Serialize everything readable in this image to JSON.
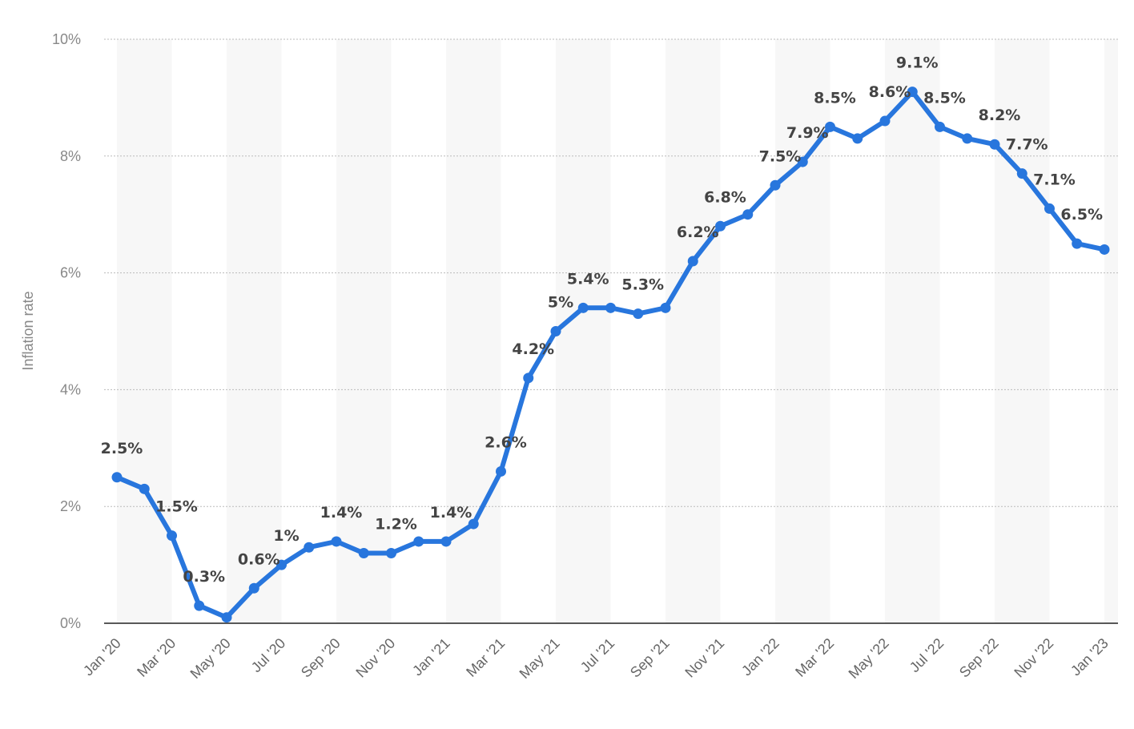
{
  "chart_data": {
    "type": "line",
    "title": "",
    "xlabel": "",
    "ylabel": "Inflation rate",
    "ylim": [
      0,
      10
    ],
    "yticks": [
      "0%",
      "2%",
      "4%",
      "6%",
      "8%",
      "10%"
    ],
    "y_tick_values": [
      0,
      2,
      4,
      6,
      8,
      10
    ],
    "grid": true,
    "line_color": "#2876dd",
    "x": [
      "Jan '20",
      "Feb '20",
      "Mar '20",
      "Apr '20",
      "May '20",
      "Jun '20",
      "Jul '20",
      "Aug '20",
      "Sep '20",
      "Oct '20",
      "Nov '20",
      "Dec '20",
      "Jan '21",
      "Feb '21",
      "Mar '21",
      "Apr '21",
      "May '21",
      "Jun '21",
      "Jul '21",
      "Aug '21",
      "Sep '21",
      "Oct '21",
      "Nov '21",
      "Dec '21",
      "Jan '22",
      "Feb '22",
      "Mar '22",
      "Apr '22",
      "May '22",
      "Jun '22",
      "Jul '22",
      "Aug '22",
      "Sep '22",
      "Oct '22",
      "Nov '22",
      "Dec '22",
      "Jan '23"
    ],
    "values": [
      2.5,
      2.3,
      1.5,
      0.3,
      0.1,
      0.6,
      1.0,
      1.3,
      1.4,
      1.2,
      1.2,
      1.4,
      1.4,
      1.7,
      2.6,
      4.2,
      5.0,
      5.4,
      5.4,
      5.3,
      5.4,
      6.2,
      6.8,
      7.0,
      7.5,
      7.9,
      8.5,
      8.3,
      8.6,
      9.1,
      8.5,
      8.3,
      8.2,
      7.7,
      7.1,
      6.5,
      6.4
    ],
    "x_tick_labels": [
      "Jan '20",
      "Mar '20",
      "May '20",
      "Jul '20",
      "Sep '20",
      "Nov '20",
      "Jan '21",
      "Mar '21",
      "May '21",
      "Jul '21",
      "Sep '21",
      "Nov '21",
      "Jan '22",
      "Mar '22",
      "May '22",
      "Jul '22",
      "Sep '22",
      "Nov '22",
      "Jan '23"
    ],
    "data_labels": [
      {
        "index": 0,
        "text": "2.5%"
      },
      {
        "index": 2,
        "text": "1.5%"
      },
      {
        "index": 3,
        "text": "0.3%"
      },
      {
        "index": 5,
        "text": "0.6%"
      },
      {
        "index": 6,
        "text": "1%"
      },
      {
        "index": 8,
        "text": "1.4%"
      },
      {
        "index": 10,
        "text": "1.2%"
      },
      {
        "index": 12,
        "text": "1.4%"
      },
      {
        "index": 14,
        "text": "2.6%"
      },
      {
        "index": 15,
        "text": "4.2%"
      },
      {
        "index": 16,
        "text": "5%"
      },
      {
        "index": 17,
        "text": "5.4%"
      },
      {
        "index": 19,
        "text": "5.3%"
      },
      {
        "index": 21,
        "text": "6.2%"
      },
      {
        "index": 22,
        "text": "6.8%"
      },
      {
        "index": 24,
        "text": "7.5%"
      },
      {
        "index": 25,
        "text": "7.9%"
      },
      {
        "index": 26,
        "text": "8.5%"
      },
      {
        "index": 28,
        "text": "8.6%"
      },
      {
        "index": 29,
        "text": "9.1%"
      },
      {
        "index": 30,
        "text": "8.5%"
      },
      {
        "index": 32,
        "text": "8.2%"
      },
      {
        "index": 33,
        "text": "7.7%"
      },
      {
        "index": 34,
        "text": "7.1%"
      },
      {
        "index": 35,
        "text": "6.5%"
      }
    ]
  }
}
